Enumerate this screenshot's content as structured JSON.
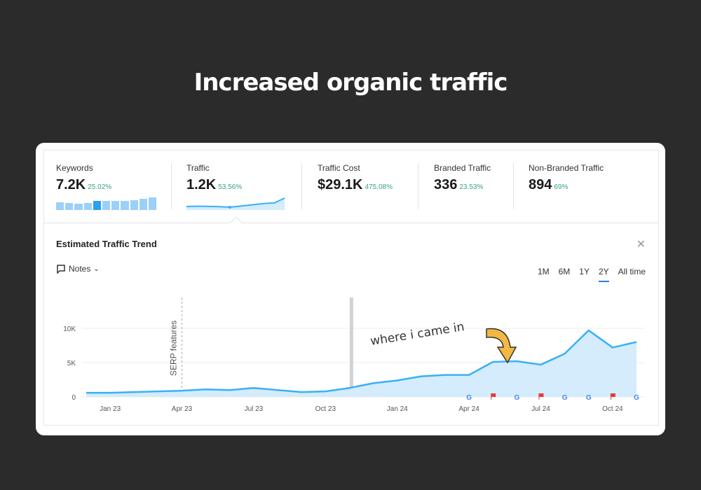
{
  "headline": "Increased organic traffic",
  "metrics": [
    {
      "label": "Keywords",
      "value": "7.2K",
      "change": "25.02%"
    },
    {
      "label": "Traffic",
      "value": "1.2K",
      "change": "53.56%"
    },
    {
      "label": "Traffic Cost",
      "value": "$29.1K",
      "change": "475.08%"
    },
    {
      "label": "Branded Traffic",
      "value": "336",
      "change": "23.53%"
    },
    {
      "label": "Non-Branded Traffic",
      "value": "894",
      "change": "69%"
    }
  ],
  "keyword_bars": [
    0.6,
    0.55,
    0.5,
    0.55,
    0.75,
    0.7,
    0.7,
    0.7,
    0.8,
    0.9,
    1.0
  ],
  "panel": {
    "title": "Estimated Traffic Trend",
    "notes": "Notes",
    "ranges": [
      "1M",
      "6M",
      "1Y",
      "2Y",
      "All time"
    ],
    "active_range": "2Y"
  },
  "annotation": "where i came in",
  "colors": {
    "line": "#3ab0f5",
    "fill": "#d4ecfb",
    "accent": "#2a7de1",
    "positive": "#3a9e8a",
    "flag": "#e53935"
  },
  "chart_data": {
    "type": "area",
    "ylim": [
      0,
      10000
    ],
    "yticks": [
      {
        "v": 0,
        "label": "0"
      },
      {
        "v": 5000,
        "label": "5K"
      },
      {
        "v": 10000,
        "label": "10K"
      }
    ],
    "xticks": [
      {
        "i": 1,
        "label": "Jan 23"
      },
      {
        "i": 4,
        "label": "Apr 23"
      },
      {
        "i": 7,
        "label": "Jul 23"
      },
      {
        "i": 10,
        "label": "Oct 23"
      },
      {
        "i": 13,
        "label": "Jan 24"
      },
      {
        "i": 16,
        "label": "Apr 24"
      },
      {
        "i": 19,
        "label": "Jul 24"
      },
      {
        "i": 22,
        "label": "Oct 24"
      }
    ],
    "months": [
      "Dec 22",
      "Jan 23",
      "Feb 23",
      "Mar 23",
      "Apr 23",
      "May 23",
      "Jun 23",
      "Jul 23",
      "Aug 23",
      "Sep 23",
      "Oct 23",
      "Nov 23",
      "Dec 23",
      "Jan 24",
      "Feb 24",
      "Mar 24",
      "Apr 24",
      "May 24",
      "Jun 24",
      "Jul 24",
      "Aug 24",
      "Sep 24",
      "Oct 24",
      "Nov 24"
    ],
    "values": [
      600,
      600,
      700,
      800,
      900,
      1100,
      1000,
      1300,
      1000,
      700,
      800,
      1300,
      2000,
      2400,
      3000,
      3200,
      3200,
      5100,
      5200,
      4700,
      6300,
      9700,
      7200,
      8000
    ],
    "event_line": {
      "i": 4,
      "label": "SERP features"
    },
    "highlight_index": 11.1,
    "markers": [
      {
        "i": 16,
        "type": "google"
      },
      {
        "i": 17,
        "type": "flag"
      },
      {
        "i": 18,
        "type": "google"
      },
      {
        "i": 19,
        "type": "flag"
      },
      {
        "i": 20,
        "type": "google"
      },
      {
        "i": 21,
        "type": "google"
      },
      {
        "i": 22,
        "type": "flag"
      },
      {
        "i": 23,
        "type": "google"
      }
    ]
  }
}
